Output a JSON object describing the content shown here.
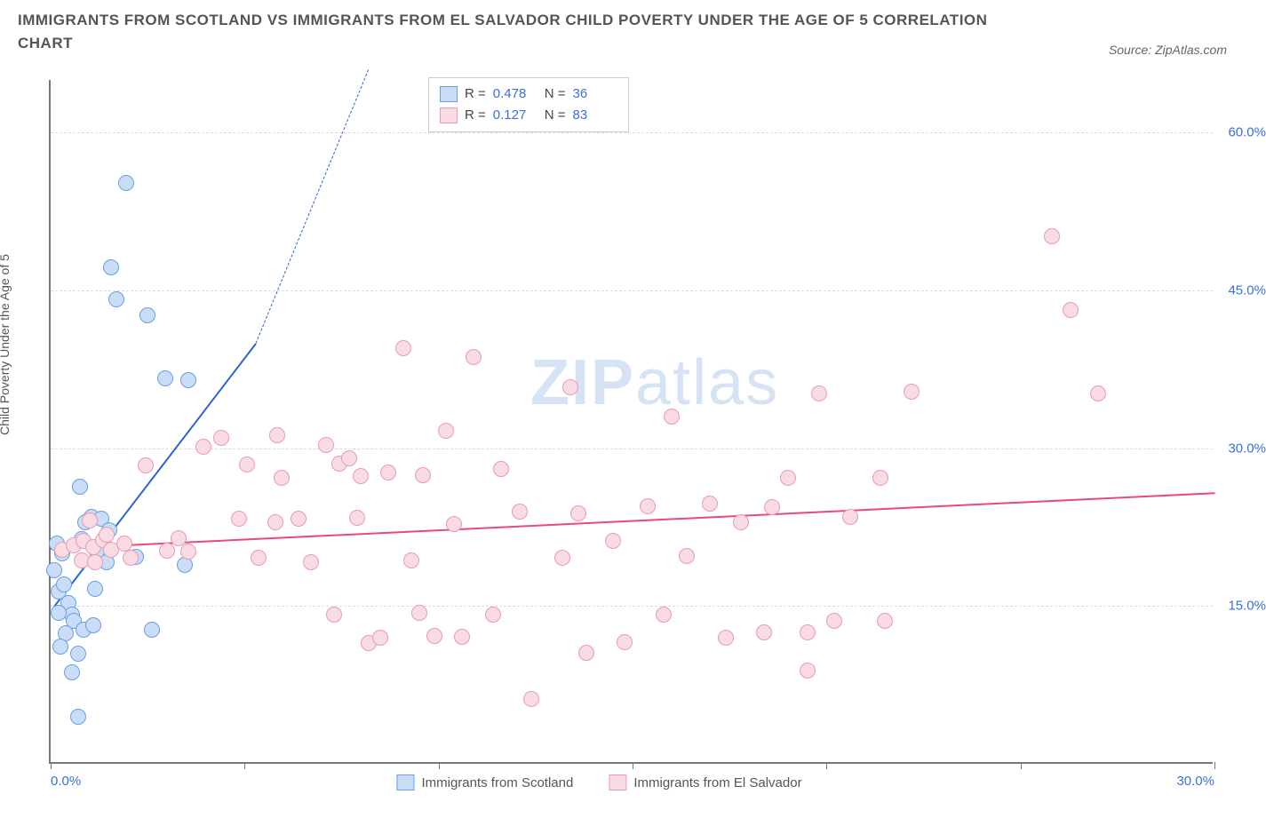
{
  "title_line1": "IMMIGRANTS FROM SCOTLAND VS IMMIGRANTS FROM EL SALVADOR CHILD POVERTY UNDER THE AGE OF 5 CORRELATION",
  "title_line2": "CHART",
  "source_label": "Source: ZipAtlas.com",
  "y_axis_label": "Child Poverty Under the Age of 5",
  "watermark_bold": "ZIP",
  "watermark_light": "atlas",
  "watermark_color": "#d6e3f5",
  "chart": {
    "type": "scatter",
    "background_color": "#ffffff",
    "grid_color": "#dddddd",
    "axis_color": "#777777",
    "tick_label_color": "#3b6fd6",
    "xlim": [
      0,
      30
    ],
    "ylim": [
      0,
      65
    ],
    "x_ticks": [
      0,
      5,
      10,
      15,
      20,
      25,
      30
    ],
    "x_tick_labels": {
      "0": "0.0%",
      "30": "30.0%"
    },
    "y_ticks": [
      15,
      30,
      45,
      60
    ],
    "y_tick_labels": {
      "15": "15.0%",
      "30": "30.0%",
      "45": "45.0%",
      "60": "60.0%"
    },
    "point_radius": 9,
    "point_stroke_width": 1.5,
    "series": [
      {
        "name": "Immigrants from Scotland",
        "fill_color": "#c9ddf6",
        "stroke_color": "#6a9ee8",
        "legend_label": "Immigrants from Scotland",
        "R": "0.478",
        "N": "36",
        "trend": {
          "x1": 0.1,
          "y1": 15,
          "x2": 5.3,
          "y2": 40,
          "dash_x2": 8.2,
          "dash_y2": 66,
          "color": "#2c64d0",
          "width": 2.5
        },
        "points": [
          [
            0.1,
            18.2
          ],
          [
            0.3,
            19.8
          ],
          [
            0.15,
            20.8
          ],
          [
            0.2,
            16.2
          ],
          [
            0.35,
            16.9
          ],
          [
            0.45,
            15.1
          ],
          [
            0.55,
            14.0
          ],
          [
            0.2,
            14.2
          ],
          [
            0.6,
            13.4
          ],
          [
            0.4,
            12.2
          ],
          [
            0.85,
            12.6
          ],
          [
            1.1,
            13.0
          ],
          [
            0.25,
            11.0
          ],
          [
            0.7,
            10.3
          ],
          [
            0.55,
            8.5
          ],
          [
            0.7,
            4.3
          ],
          [
            0.8,
            21.2
          ],
          [
            0.9,
            22.8
          ],
          [
            1.05,
            23.3
          ],
          [
            1.3,
            23.1
          ],
          [
            1.5,
            22.0
          ],
          [
            1.2,
            20.0
          ],
          [
            1.45,
            19.0
          ],
          [
            1.15,
            16.5
          ],
          [
            2.2,
            19.5
          ],
          [
            2.6,
            12.6
          ],
          [
            0.75,
            26.2
          ],
          [
            3.45,
            18.7
          ],
          [
            2.95,
            36.5
          ],
          [
            3.55,
            36.3
          ],
          [
            2.5,
            42.5
          ],
          [
            1.7,
            44.0
          ],
          [
            1.55,
            47.0
          ],
          [
            1.95,
            55.0
          ]
        ]
      },
      {
        "name": "Immigrants from El Salvador",
        "fill_color": "#f9dbe3",
        "stroke_color": "#ea9ab2",
        "legend_label": "Immigrants from El Salvador",
        "R": "0.127",
        "N": "83",
        "trend": {
          "x1": 0,
          "y1": 20.5,
          "x2": 30,
          "y2": 25.8,
          "color": "#e84a7a",
          "width": 2.5
        },
        "points": [
          [
            0.3,
            20.2
          ],
          [
            0.6,
            20.6
          ],
          [
            0.85,
            21.0
          ],
          [
            1.1,
            20.4
          ],
          [
            1.35,
            21.1
          ],
          [
            1.45,
            21.6
          ],
          [
            1.55,
            20.2
          ],
          [
            1.9,
            20.8
          ],
          [
            0.8,
            19.2
          ],
          [
            1.15,
            19.0
          ],
          [
            2.05,
            19.4
          ],
          [
            1.0,
            23.0
          ],
          [
            2.45,
            28.2
          ],
          [
            3.0,
            20.1
          ],
          [
            3.3,
            21.3
          ],
          [
            3.55,
            20.0
          ],
          [
            3.95,
            30.0
          ],
          [
            4.4,
            30.8
          ],
          [
            4.85,
            23.1
          ],
          [
            5.05,
            28.3
          ],
          [
            5.35,
            19.4
          ],
          [
            5.8,
            22.8
          ],
          [
            5.95,
            27.0
          ],
          [
            5.85,
            31.1
          ],
          [
            6.4,
            23.1
          ],
          [
            6.7,
            19.0
          ],
          [
            7.1,
            30.1
          ],
          [
            7.3,
            14.0
          ],
          [
            7.45,
            28.4
          ],
          [
            7.7,
            28.9
          ],
          [
            7.9,
            23.2
          ],
          [
            8.2,
            11.3
          ],
          [
            8.0,
            27.2
          ],
          [
            8.5,
            11.8
          ],
          [
            8.7,
            27.5
          ],
          [
            9.3,
            19.2
          ],
          [
            9.5,
            14.2
          ],
          [
            9.6,
            27.3
          ],
          [
            9.9,
            12.0
          ],
          [
            9.1,
            39.3
          ],
          [
            10.2,
            31.5
          ],
          [
            10.4,
            22.6
          ],
          [
            10.9,
            38.5
          ],
          [
            10.6,
            11.9
          ],
          [
            11.4,
            14.0
          ],
          [
            11.6,
            27.9
          ],
          [
            12.1,
            23.8
          ],
          [
            12.4,
            6.0
          ],
          [
            13.6,
            23.6
          ],
          [
            13.2,
            19.4
          ],
          [
            13.4,
            35.6
          ],
          [
            13.8,
            10.4
          ],
          [
            14.5,
            21.0
          ],
          [
            14.8,
            11.4
          ],
          [
            15.4,
            24.3
          ],
          [
            16.0,
            32.8
          ],
          [
            15.8,
            14.0
          ],
          [
            16.4,
            19.6
          ],
          [
            17.0,
            24.6
          ],
          [
            17.4,
            11.8
          ],
          [
            17.8,
            22.8
          ],
          [
            18.6,
            24.2
          ],
          [
            18.4,
            12.3
          ],
          [
            19.0,
            27.0
          ],
          [
            19.8,
            35.0
          ],
          [
            19.5,
            12.3
          ],
          [
            20.2,
            13.4
          ],
          [
            20.6,
            23.3
          ],
          [
            21.4,
            27.0
          ],
          [
            19.5,
            8.7
          ],
          [
            22.2,
            35.2
          ],
          [
            21.5,
            13.4
          ],
          [
            25.8,
            50.0
          ],
          [
            26.3,
            43.0
          ],
          [
            27.0,
            35.0
          ]
        ]
      }
    ]
  },
  "legend_stats": {
    "R_label": "R =",
    "N_label": "N ="
  },
  "bottom_legend": [
    {
      "label": "Immigrants from Scotland",
      "fill": "#c9ddf6",
      "stroke": "#6a9ee8"
    },
    {
      "label": "Immigrants from El Salvador",
      "fill": "#f9dbe3",
      "stroke": "#ea9ab2"
    }
  ]
}
